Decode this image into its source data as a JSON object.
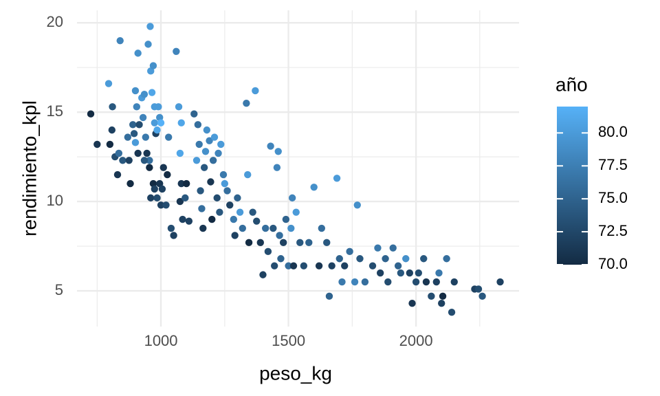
{
  "chart_data": {
    "type": "scatter",
    "x_label": "peso_kg",
    "y_label": "rendimiento_kpl",
    "xlim": [
      671,
      2404
    ],
    "ylim": [
      3.0,
      20.7
    ],
    "xticks": [
      1000,
      1500,
      2000
    ],
    "yticks": [
      5,
      10,
      15,
      20
    ],
    "minor_xticks": [
      750,
      1250,
      1750,
      2250
    ],
    "minor_yticks": [
      7.5,
      12.5,
      17.5
    ],
    "grid": true,
    "x": [
      725,
      750,
      795,
      810,
      808,
      800,
      820,
      830,
      840,
      835,
      850,
      870,
      875,
      880,
      890,
      900,
      895,
      900,
      905,
      910,
      910,
      915,
      925,
      930,
      935,
      940,
      945,
      950,
      955,
      958,
      960,
      965,
      970,
      975,
      975,
      980,
      985,
      990,
      995,
      1000,
      935,
      955,
      960,
      970,
      975,
      985,
      995,
      1000,
      1005,
      1010,
      1020,
      1025,
      1030,
      1040,
      1050,
      1060,
      1070,
      1080,
      1075,
      1080,
      1075,
      1085,
      1095,
      1100,
      1110,
      1130,
      1140,
      1145,
      1150,
      1155,
      1160,
      1165,
      1170,
      1175,
      1180,
      1190,
      1195,
      1200,
      1205,
      1210,
      1220,
      1225,
      1230,
      1235,
      1245,
      1250,
      1260,
      1270,
      1285,
      1290,
      1300,
      1310,
      1320,
      1335,
      1340,
      1345,
      1360,
      1370,
      1375,
      1390,
      1400,
      1410,
      1420,
      1430,
      1440,
      1445,
      1455,
      1460,
      1465,
      1470,
      1480,
      1490,
      1500,
      1510,
      1515,
      1520,
      1530,
      1545,
      1560,
      1580,
      1600,
      1620,
      1630,
      1650,
      1660,
      1670,
      1690,
      1700,
      1710,
      1720,
      1740,
      1760,
      1770,
      1780,
      1800,
      1830,
      1850,
      1860,
      1880,
      1890,
      1910,
      1930,
      1940,
      1960,
      1975,
      1985,
      2000,
      2010,
      2030,
      2040,
      2060,
      2080,
      2090,
      2100,
      2105,
      2120,
      2140,
      2150,
      2230,
      2245,
      2260,
      2330
    ],
    "y": [
      14.9,
      13.2,
      16.6,
      15.3,
      14,
      13.2,
      12.5,
      11.5,
      19,
      12.7,
      12.3,
      13.6,
      12.3,
      11,
      14.3,
      16.2,
      13.8,
      13.3,
      15.3,
      18.3,
      12.7,
      14.3,
      15.8,
      14.7,
      16,
      13.6,
      12.7,
      18.8,
      12.3,
      19.8,
      17.3,
      16.1,
      17.6,
      15.3,
      14.4,
      13.8,
      14,
      15.3,
      14.7,
      14.4,
      12.3,
      11.9,
      10.2,
      11,
      10.7,
      10.2,
      11,
      9.8,
      10.7,
      11.9,
      9.8,
      11.5,
      13.6,
      8.5,
      8.1,
      18.4,
      15.3,
      14.4,
      12.7,
      11,
      10,
      9,
      10.2,
      11,
      8.9,
      14.9,
      12.3,
      14.3,
      13.2,
      10.6,
      9.6,
      8.5,
      11.9,
      12.8,
      14,
      13.4,
      11.1,
      9,
      12.3,
      13.6,
      10.2,
      12.7,
      9.4,
      13.2,
      11.5,
      11,
      10.6,
      9.8,
      9,
      8.1,
      10.2,
      9.4,
      8.5,
      15.5,
      11.5,
      7.7,
      9.4,
      16.2,
      8.9,
      7.7,
      5.9,
      8.5,
      7.2,
      13.1,
      8.5,
      6.4,
      11.9,
      12.8,
      8.1,
      6.8,
      7.7,
      9,
      6.4,
      8.5,
      10.2,
      6.4,
      9.4,
      7.7,
      6.4,
      7.7,
      10.8,
      6.4,
      8.5,
      7.7,
      4.7,
      6.4,
      11.3,
      6.8,
      5.5,
      6.4,
      7.2,
      5.5,
      9.8,
      6.8,
      5.5,
      6.4,
      7.4,
      6,
      6.8,
      5.5,
      7.4,
      6.4,
      6,
      6.8,
      6,
      4.3,
      5.5,
      6,
      6.8,
      5.5,
      4.7,
      5.5,
      6,
      4.3,
      4.7,
      6.8,
      3.8,
      5.5,
      5.1,
      5.1,
      4.7,
      5.5
    ],
    "color_values": [
      70,
      71,
      80,
      74,
      72,
      70,
      73,
      71,
      78,
      76,
      74,
      76,
      72,
      70,
      75,
      79,
      74,
      80,
      78,
      79,
      71,
      73,
      80,
      78,
      79,
      77,
      71,
      79,
      76,
      80,
      80,
      81,
      79,
      80,
      80,
      72,
      81,
      80,
      79,
      82,
      74,
      70,
      72,
      70,
      72,
      73,
      71,
      72,
      72,
      71,
      73,
      70,
      77,
      73,
      72,
      78,
      80,
      81,
      81,
      71,
      71,
      72,
      74,
      70,
      72,
      75,
      80,
      76,
      77,
      74,
      76,
      71,
      74,
      79,
      79,
      78,
      71,
      70,
      76,
      80,
      73,
      78,
      74,
      80,
      77,
      80,
      76,
      72,
      77,
      72,
      75,
      80,
      76,
      77,
      80,
      70,
      74,
      80,
      73,
      71,
      72,
      76,
      73,
      78,
      74,
      73,
      78,
      79,
      76,
      75,
      72,
      75,
      76,
      79,
      78,
      71,
      80,
      74,
      73,
      75,
      79,
      71,
      76,
      74,
      75,
      72,
      80,
      75,
      77,
      72,
      76,
      78,
      79,
      74,
      76,
      73,
      77,
      72,
      75,
      73,
      76,
      75,
      74,
      79,
      72,
      71,
      73,
      73,
      74,
      71,
      73,
      72,
      77,
      72,
      70,
      76,
      73,
      72,
      72,
      73,
      74,
      72
    ],
    "colorbar": {
      "title": "año",
      "lim": [
        70,
        82
      ],
      "low": "#132B43",
      "high": "#56B1F7",
      "ticks": [
        {
          "value": 70,
          "label": "70.0"
        },
        {
          "value": 72.5,
          "label": "72.5"
        },
        {
          "value": 75,
          "label": "75.0"
        },
        {
          "value": 77.5,
          "label": "77.5"
        },
        {
          "value": 80,
          "label": "80.0"
        }
      ]
    }
  }
}
